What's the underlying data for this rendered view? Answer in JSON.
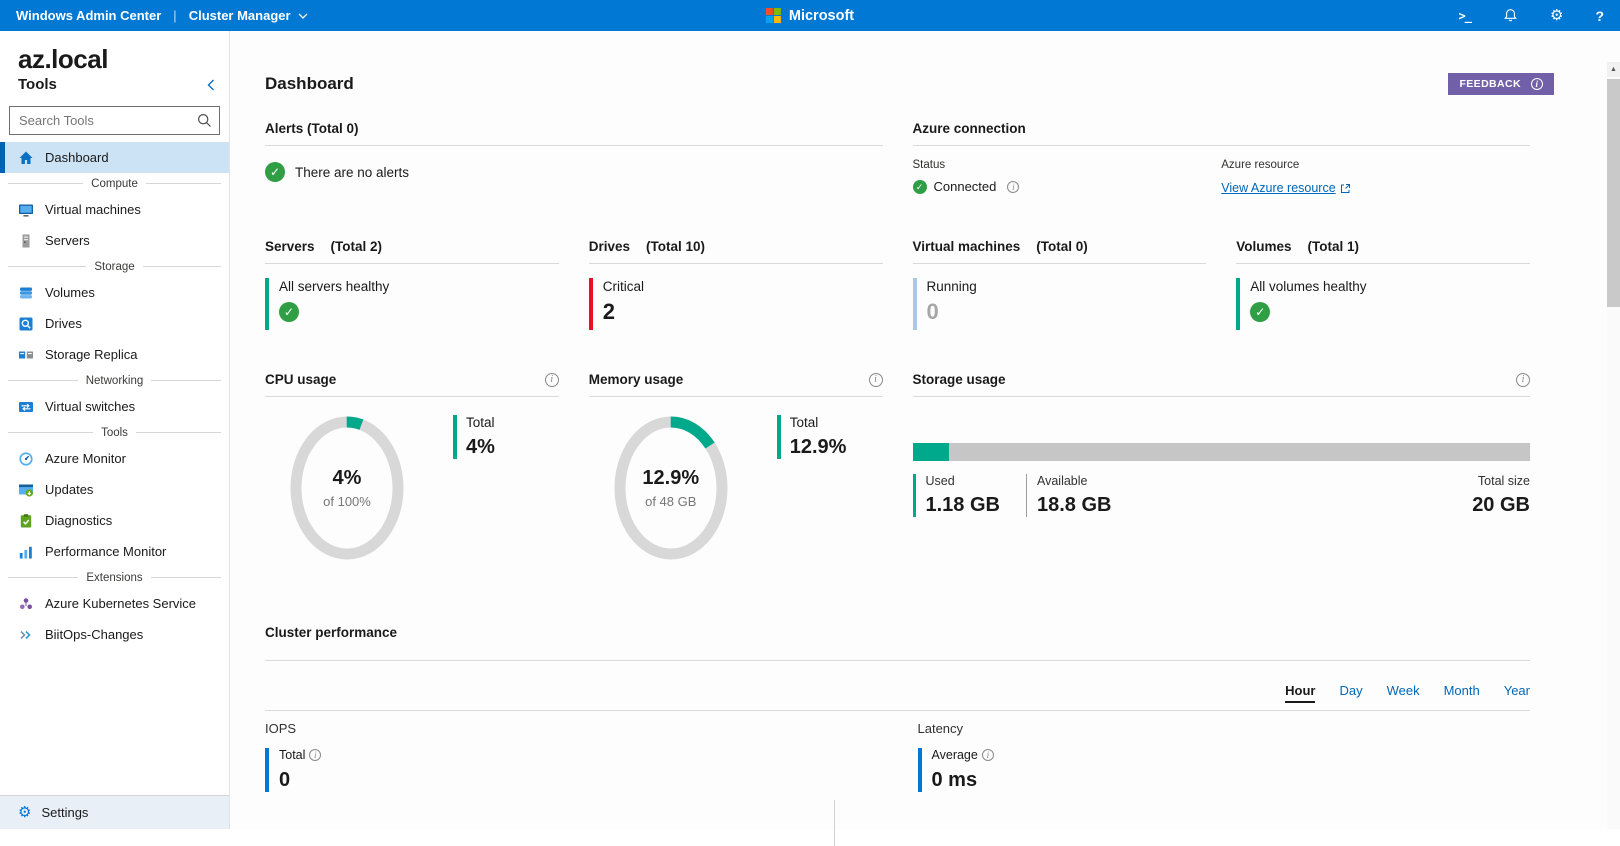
{
  "theme": {
    "topbar_blue": "#0078d4",
    "accent_blue": "#0078d4",
    "link_blue": "#0067b8",
    "teal": "#00a88c",
    "red": "#e81123",
    "green": "#2f9e44",
    "purple": "#7160a8",
    "vm_bar_blue": "#a9c7e8",
    "selected_bg": "#cce3f5",
    "selected_border": "#0063b1",
    "ms_red": "#f25022",
    "ms_green": "#7fba00",
    "ms_blue": "#00a4ef",
    "ms_yellow": "#ffb900"
  },
  "topbar": {
    "app_title": "Windows Admin Center",
    "solution": "Cluster Manager",
    "brand": "Microsoft",
    "icons": [
      "powershell",
      "notifications",
      "settings",
      "help"
    ]
  },
  "sidebar": {
    "cluster_name": "az.local",
    "title": "Tools",
    "search_placeholder": "Search Tools",
    "settings_label": "Settings",
    "items": [
      {
        "type": "item",
        "label": "Dashboard",
        "icon": "home",
        "selected": true
      },
      {
        "type": "section",
        "label": "Compute"
      },
      {
        "type": "item",
        "label": "Virtual machines",
        "icon": "virtual-machines"
      },
      {
        "type": "item",
        "label": "Servers",
        "icon": "servers"
      },
      {
        "type": "section",
        "label": "Storage"
      },
      {
        "type": "item",
        "label": "Volumes",
        "icon": "volumes"
      },
      {
        "type": "item",
        "label": "Drives",
        "icon": "drives"
      },
      {
        "type": "item",
        "label": "Storage Replica",
        "icon": "storage-replica"
      },
      {
        "type": "section",
        "label": "Networking"
      },
      {
        "type": "item",
        "label": "Virtual switches",
        "icon": "virtual-switches"
      },
      {
        "type": "section",
        "label": "Tools"
      },
      {
        "type": "item",
        "label": "Azure Monitor",
        "icon": "azure-monitor"
      },
      {
        "type": "item",
        "label": "Updates",
        "icon": "updates"
      },
      {
        "type": "item",
        "label": "Diagnostics",
        "icon": "diagnostics"
      },
      {
        "type": "item",
        "label": "Performance Monitor",
        "icon": "performance-monitor"
      },
      {
        "type": "section",
        "label": "Extensions"
      },
      {
        "type": "item",
        "label": "Azure Kubernetes Service",
        "icon": "azure-kubernetes-service"
      },
      {
        "type": "item",
        "label": "BiitOps-Changes",
        "icon": "biitops-changes"
      }
    ]
  },
  "main": {
    "page_title": "Dashboard",
    "feedback_button": "FEEDBACK",
    "alerts": {
      "title": "Alerts (Total 0)",
      "empty_message": "There are no alerts"
    },
    "azure_connection": {
      "title": "Azure connection",
      "status_label": "Status",
      "status_value": "Connected",
      "resource_label": "Azure resource",
      "resource_link": "View Azure resource"
    },
    "summary": [
      {
        "title": "Servers",
        "total": "(Total 2)",
        "status_label": "All servers healthy",
        "value": null,
        "healthy": true,
        "accent": "#00a88c"
      },
      {
        "title": "Drives",
        "total": "(Total 10)",
        "status_label": "Critical",
        "value": "2",
        "healthy": false,
        "accent": "#e81123"
      },
      {
        "title": "Virtual machines",
        "total": "(Total 0)",
        "status_label": "Running",
        "value": "0",
        "healthy": false,
        "accent": "#a9c7e8"
      },
      {
        "title": "Volumes",
        "total": "(Total 1)",
        "status_label": "All volumes healthy",
        "value": null,
        "healthy": true,
        "accent": "#00a88c"
      }
    ],
    "cpu_usage": {
      "title": "CPU usage",
      "percent": 4,
      "center_value": "4%",
      "center_sub": "of 100%",
      "legend_label": "Total",
      "legend_value": "4%"
    },
    "memory_usage": {
      "title": "Memory usage",
      "percent": 12.9,
      "center_value": "12.9%",
      "center_sub": "of 48 GB",
      "legend_label": "Total",
      "legend_value": "12.9%"
    },
    "storage_usage": {
      "title": "Storage usage",
      "used_percent": 5.9,
      "used_label": "Used",
      "used_value": "1.18 GB",
      "available_label": "Available",
      "available_value": "18.8 GB",
      "total_label": "Total size",
      "total_value": "20 GB"
    },
    "cluster_performance": {
      "title": "Cluster performance",
      "tabs": [
        "Hour",
        "Day",
        "Week",
        "Month",
        "Year"
      ],
      "active_tab": "Hour",
      "iops": {
        "section_label": "IOPS",
        "metric_label": "Total",
        "value": "0"
      },
      "latency": {
        "section_label": "Latency",
        "metric_label": "Average",
        "value": "0 ms"
      }
    }
  }
}
